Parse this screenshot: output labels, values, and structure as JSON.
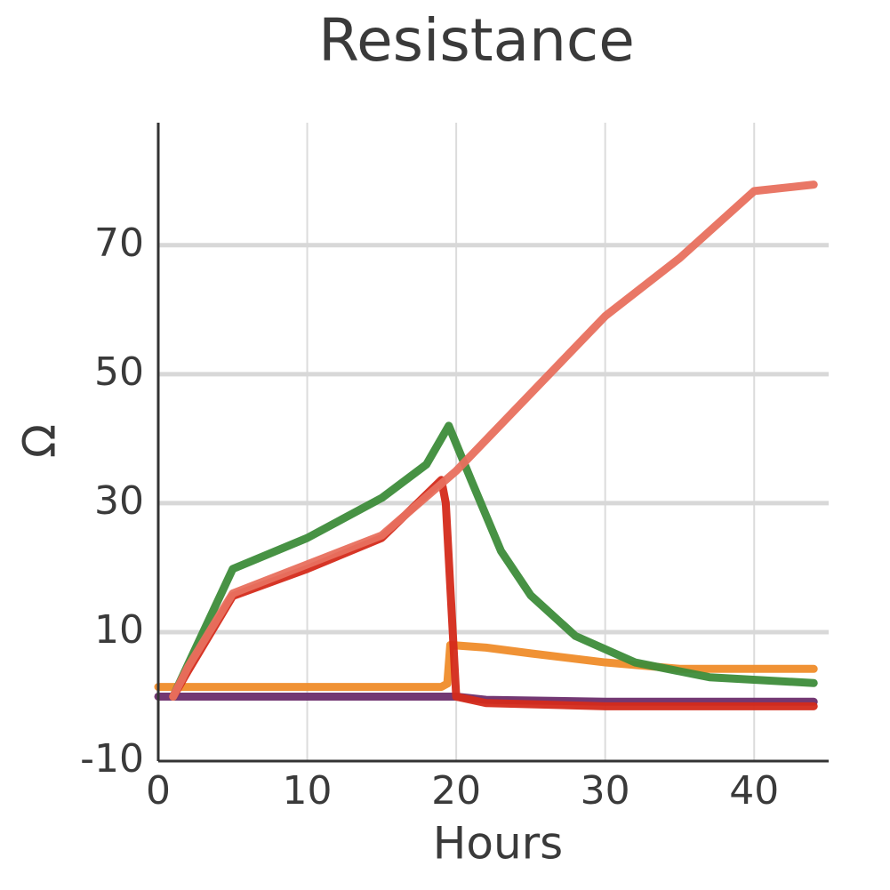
{
  "chart_data": {
    "type": "line",
    "title": "Resistance",
    "x_label": "Hours",
    "y_label": "Ω",
    "xlim": [
      0,
      45
    ],
    "ylim": [
      -10,
      89
    ],
    "xticks": [
      0,
      10,
      20,
      30,
      40
    ],
    "yticks": [
      -10,
      10,
      30,
      50,
      70
    ],
    "grid": true,
    "series": [
      {
        "color": "#6b2d6b",
        "x": [
          0,
          10,
          20,
          22,
          30,
          44
        ],
        "values": [
          0,
          0,
          0,
          -0.5,
          -0.8,
          -0.8
        ]
      },
      {
        "color": "#ef8c2a",
        "x": [
          0,
          10,
          19,
          19.4,
          19.6,
          22,
          25,
          30,
          35,
          44
        ],
        "values": [
          1.5,
          1.5,
          1.5,
          2,
          8,
          7.6,
          6.7,
          5.3,
          4.3,
          4.3
        ]
      },
      {
        "color": "#3d8c3a",
        "x": [
          1,
          2,
          5,
          10,
          15,
          18,
          19.5,
          21,
          23,
          25,
          28,
          32,
          37,
          44
        ],
        "values": [
          0,
          5,
          19.8,
          24.6,
          30.8,
          36,
          42,
          33.6,
          22.6,
          15.7,
          9.4,
          5.3,
          3,
          2.1
        ]
      },
      {
        "color": "#d42a1a",
        "x": [
          1,
          2,
          5,
          10,
          15,
          19,
          19.3,
          20,
          22,
          30,
          44
        ],
        "values": [
          0,
          4,
          15.6,
          19.8,
          24.6,
          33.6,
          30,
          0,
          -1,
          -1.5,
          -1.5
        ]
      },
      {
        "color": "#e8705e",
        "x": [
          1,
          2,
          5,
          10,
          15,
          20,
          25,
          30,
          35,
          40,
          44
        ],
        "values": [
          0,
          4.6,
          16,
          20.5,
          25,
          35,
          47,
          59,
          68,
          78.4,
          79.4
        ]
      }
    ]
  }
}
